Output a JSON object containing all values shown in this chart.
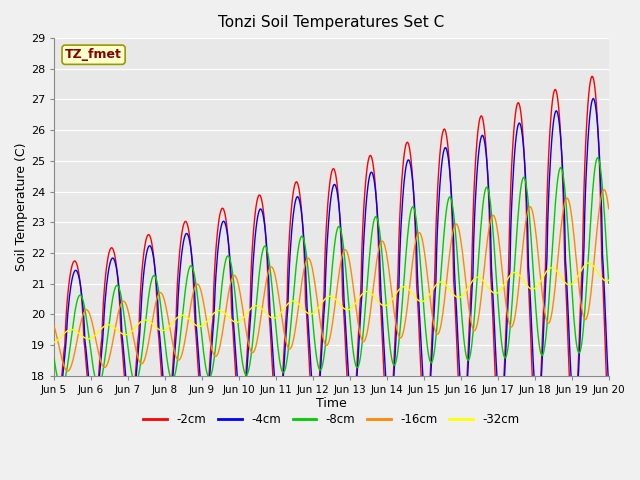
{
  "title": "Tonzi Soil Temperatures Set C",
  "xlabel": "Time",
  "ylabel": "Soil Temperature (C)",
  "ylim": [
    18.0,
    29.0
  ],
  "yticks": [
    18.0,
    19.0,
    20.0,
    21.0,
    22.0,
    23.0,
    24.0,
    25.0,
    26.0,
    27.0,
    28.0,
    29.0
  ],
  "line_colors": [
    "#ff0000",
    "#0000ff",
    "#00cc00",
    "#ff8800",
    "#ffff00"
  ],
  "line_labels": [
    "-2cm",
    "-4cm",
    "-8cm",
    "-16cm",
    "-32cm"
  ],
  "line_width": 1.0,
  "plot_bg_color": "#e8e8e8",
  "fig_bg_color": "#f0f0f0",
  "label_box_text": "TZ_fmet",
  "label_box_bg": "#ffffcc",
  "label_box_edge": "#999900",
  "label_text_color": "#880000",
  "n_points": 720,
  "x_start": 5.0,
  "x_end": 20.0,
  "xtick_positions": [
    5,
    6,
    7,
    8,
    9,
    10,
    11,
    12,
    13,
    14,
    15,
    16,
    17,
    18,
    19,
    20
  ],
  "xtick_labels": [
    "Jun 5",
    "Jun 6",
    "Jun 7",
    "Jun 8",
    "Jun 9",
    "Jun 10",
    "Jun 11",
    "Jun 12",
    "Jun 13",
    "Jun 14",
    "Jun 15",
    "Jun 16",
    "Jun 17",
    "Jun 18",
    "Jun 19",
    "Jun 20"
  ]
}
